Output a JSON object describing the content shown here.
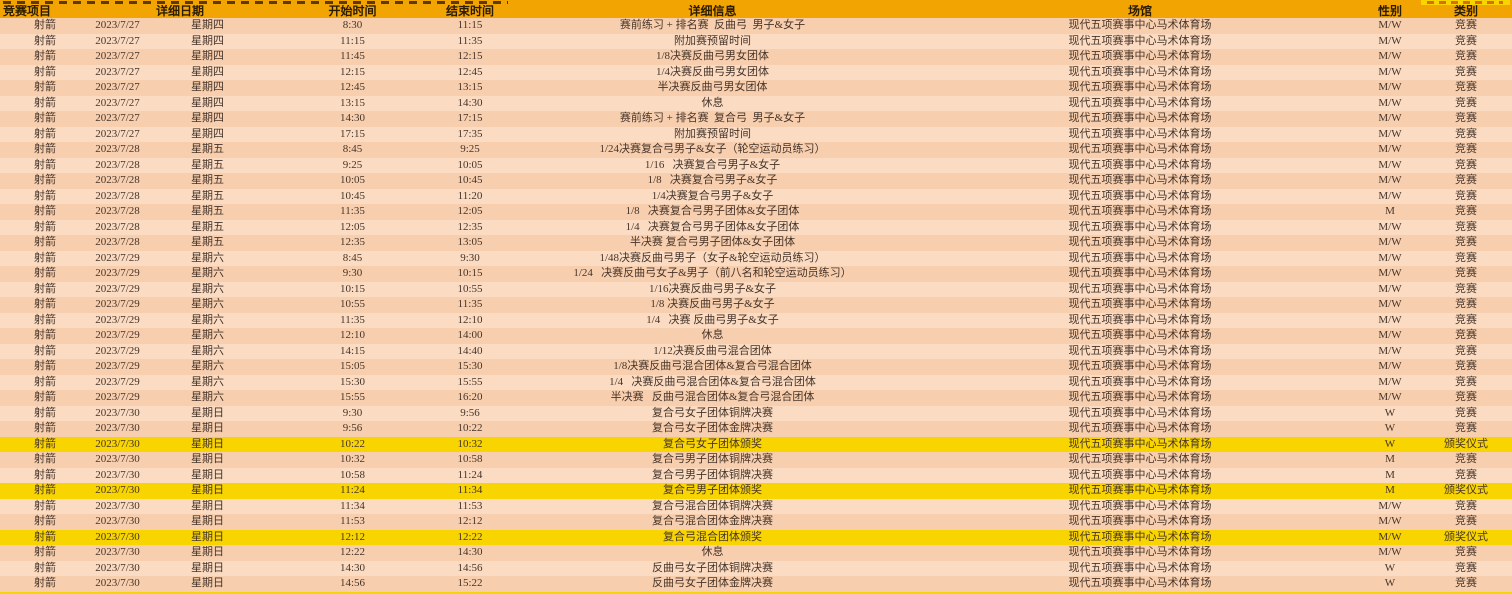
{
  "colors": {
    "header_bg": "#f2a403",
    "highlight": "#f8d400",
    "row_even": "#f8cfae",
    "row_odd": "#fbdcc2",
    "text_dark": "#46342a"
  },
  "table": {
    "columns": {
      "event": "竞赛项目",
      "date_group": "详细日期",
      "start": "开始时间",
      "end": "结束时间",
      "info": "详细信息",
      "venue": "场馆",
      "gender": "性别",
      "category": "类别"
    },
    "rows": [
      {
        "event": "射箭",
        "date": "2023/7/27",
        "day": "星期四",
        "start": "8:30",
        "end": "11:15",
        "info": "赛前练习 + 排名赛  反曲弓  男子&女子",
        "venue": "现代五项赛事中心马术体育场",
        "gender": "M/W",
        "category": "竞赛",
        "highlight": false
      },
      {
        "event": "射箭",
        "date": "2023/7/27",
        "day": "星期四",
        "start": "11:15",
        "end": "11:35",
        "info": "附加赛预留时间",
        "venue": "现代五项赛事中心马术体育场",
        "gender": "M/W",
        "category": "竞赛",
        "highlight": false
      },
      {
        "event": "射箭",
        "date": "2023/7/27",
        "day": "星期四",
        "start": "11:45",
        "end": "12:15",
        "info": "1/8决赛反曲弓男女团体",
        "venue": "现代五项赛事中心马术体育场",
        "gender": "M/W",
        "category": "竞赛",
        "highlight": false
      },
      {
        "event": "射箭",
        "date": "2023/7/27",
        "day": "星期四",
        "start": "12:15",
        "end": "12:45",
        "info": "1/4决赛反曲弓男女团体",
        "venue": "现代五项赛事中心马术体育场",
        "gender": "M/W",
        "category": "竞赛",
        "highlight": false
      },
      {
        "event": "射箭",
        "date": "2023/7/27",
        "day": "星期四",
        "start": "12:45",
        "end": "13:15",
        "info": "半决赛反曲弓男女团体",
        "venue": "现代五项赛事中心马术体育场",
        "gender": "M/W",
        "category": "竞赛",
        "highlight": false
      },
      {
        "event": "射箭",
        "date": "2023/7/27",
        "day": "星期四",
        "start": "13:15",
        "end": "14:30",
        "info": "休息",
        "venue": "现代五项赛事中心马术体育场",
        "gender": "M/W",
        "category": "竞赛",
        "highlight": false
      },
      {
        "event": "射箭",
        "date": "2023/7/27",
        "day": "星期四",
        "start": "14:30",
        "end": "17:15",
        "info": "赛前练习 + 排名赛  复合弓  男子&女子",
        "venue": "现代五项赛事中心马术体育场",
        "gender": "M/W",
        "category": "竞赛",
        "highlight": false
      },
      {
        "event": "射箭",
        "date": "2023/7/27",
        "day": "星期四",
        "start": "17:15",
        "end": "17:35",
        "info": "附加赛预留时间",
        "venue": "现代五项赛事中心马术体育场",
        "gender": "M/W",
        "category": "竞赛",
        "highlight": false
      },
      {
        "event": "射箭",
        "date": "2023/7/28",
        "day": "星期五",
        "start": "8:45",
        "end": "9:25",
        "info": "1/24决赛复合弓男子&女子（轮空运动员练习）",
        "venue": "现代五项赛事中心马术体育场",
        "gender": "M/W",
        "category": "竞赛",
        "highlight": false
      },
      {
        "event": "射箭",
        "date": "2023/7/28",
        "day": "星期五",
        "start": "9:25",
        "end": "10:05",
        "info": "1/16   决赛复合弓男子&女子",
        "venue": "现代五项赛事中心马术体育场",
        "gender": "M/W",
        "category": "竞赛",
        "highlight": false
      },
      {
        "event": "射箭",
        "date": "2023/7/28",
        "day": "星期五",
        "start": "10:05",
        "end": "10:45",
        "info": "1/8   决赛复合弓男子&女子",
        "venue": "现代五项赛事中心马术体育场",
        "gender": "M/W",
        "category": "竞赛",
        "highlight": false
      },
      {
        "event": "射箭",
        "date": "2023/7/28",
        "day": "星期五",
        "start": "10:45",
        "end": "11:20",
        "info": "1/4决赛复合弓男子&女子",
        "venue": "现代五项赛事中心马术体育场",
        "gender": "M/W",
        "category": "竞赛",
        "highlight": false
      },
      {
        "event": "射箭",
        "date": "2023/7/28",
        "day": "星期五",
        "start": "11:35",
        "end": "12:05",
        "info": "1/8   决赛复合弓男子团体&女子团体",
        "venue": "现代五项赛事中心马术体育场",
        "gender": "M",
        "category": "竞赛",
        "highlight": false
      },
      {
        "event": "射箭",
        "date": "2023/7/28",
        "day": "星期五",
        "start": "12:05",
        "end": "12:35",
        "info": "1/4   决赛复合弓男子团体&女子团体",
        "venue": "现代五项赛事中心马术体育场",
        "gender": "M/W",
        "category": "竞赛",
        "highlight": false
      },
      {
        "event": "射箭",
        "date": "2023/7/28",
        "day": "星期五",
        "start": "12:35",
        "end": "13:05",
        "info": "半决赛 复合弓男子团体&女子团体",
        "venue": "现代五项赛事中心马术体育场",
        "gender": "M/W",
        "category": "竞赛",
        "highlight": false
      },
      {
        "event": "射箭",
        "date": "2023/7/29",
        "day": "星期六",
        "start": "8:45",
        "end": "9:30",
        "info": "1/48决赛反曲弓男子（女子&轮空运动员练习）",
        "venue": "现代五项赛事中心马术体育场",
        "gender": "M/W",
        "category": "竞赛",
        "highlight": false
      },
      {
        "event": "射箭",
        "date": "2023/7/29",
        "day": "星期六",
        "start": "9:30",
        "end": "10:15",
        "info": "1/24   决赛反曲弓女子&男子（前八名和轮空运动员练习）",
        "venue": "现代五项赛事中心马术体育场",
        "gender": "M/W",
        "category": "竞赛",
        "highlight": false
      },
      {
        "event": "射箭",
        "date": "2023/7/29",
        "day": "星期六",
        "start": "10:15",
        "end": "10:55",
        "info": "1/16决赛反曲弓男子&女子",
        "venue": "现代五项赛事中心马术体育场",
        "gender": "M/W",
        "category": "竞赛",
        "highlight": false
      },
      {
        "event": "射箭",
        "date": "2023/7/29",
        "day": "星期六",
        "start": "10:55",
        "end": "11:35",
        "info": "1/8 决赛反曲弓男子&女子",
        "venue": "现代五项赛事中心马术体育场",
        "gender": "M/W",
        "category": "竞赛",
        "highlight": false
      },
      {
        "event": "射箭",
        "date": "2023/7/29",
        "day": "星期六",
        "start": "11:35",
        "end": "12:10",
        "info": "1/4   决赛 反曲弓男子&女子",
        "venue": "现代五项赛事中心马术体育场",
        "gender": "M/W",
        "category": "竞赛",
        "highlight": false
      },
      {
        "event": "射箭",
        "date": "2023/7/29",
        "day": "星期六",
        "start": "12:10",
        "end": "14:00",
        "info": "休息",
        "venue": "现代五项赛事中心马术体育场",
        "gender": "M/W",
        "category": "竞赛",
        "highlight": false
      },
      {
        "event": "射箭",
        "date": "2023/7/29",
        "day": "星期六",
        "start": "14:15",
        "end": "14:40",
        "info": "1/12决赛反曲弓混合团体",
        "venue": "现代五项赛事中心马术体育场",
        "gender": "M/W",
        "category": "竞赛",
        "highlight": false
      },
      {
        "event": "射箭",
        "date": "2023/7/29",
        "day": "星期六",
        "start": "15:05",
        "end": "15:30",
        "info": "1/8决赛反曲弓混合团体&复合弓混合团体",
        "venue": "现代五项赛事中心马术体育场",
        "gender": "M/W",
        "category": "竞赛",
        "highlight": false
      },
      {
        "event": "射箭",
        "date": "2023/7/29",
        "day": "星期六",
        "start": "15:30",
        "end": "15:55",
        "info": "1/4   决赛反曲弓混合团体&复合弓混合团体",
        "venue": "现代五项赛事中心马术体育场",
        "gender": "M/W",
        "category": "竞赛",
        "highlight": false
      },
      {
        "event": "射箭",
        "date": "2023/7/29",
        "day": "星期六",
        "start": "15:55",
        "end": "16:20",
        "info": "半决赛   反曲弓混合团体&复合弓混合团体",
        "venue": "现代五项赛事中心马术体育场",
        "gender": "M/W",
        "category": "竞赛",
        "highlight": false
      },
      {
        "event": "射箭",
        "date": "2023/7/30",
        "day": "星期日",
        "start": "9:30",
        "end": "9:56",
        "info": "复合弓女子团体铜牌决赛",
        "venue": "现代五项赛事中心马术体育场",
        "gender": "W",
        "category": "竞赛",
        "highlight": false
      },
      {
        "event": "射箭",
        "date": "2023/7/30",
        "day": "星期日",
        "start": "9:56",
        "end": "10:22",
        "info": "复合弓女子团体金牌决赛",
        "venue": "现代五项赛事中心马术体育场",
        "gender": "W",
        "category": "竞赛",
        "highlight": false
      },
      {
        "event": "射箭",
        "date": "2023/7/30",
        "day": "星期日",
        "start": "10:22",
        "end": "10:32",
        "info": "复合弓女子团体颁奖",
        "venue": "现代五项赛事中心马术体育场",
        "gender": "W",
        "category": "颁奖仪式",
        "highlight": true
      },
      {
        "event": "射箭",
        "date": "2023/7/30",
        "day": "星期日",
        "start": "10:32",
        "end": "10:58",
        "info": "复合弓男子团体铜牌决赛",
        "venue": "现代五项赛事中心马术体育场",
        "gender": "M",
        "category": "竞赛",
        "highlight": false
      },
      {
        "event": "射箭",
        "date": "2023/7/30",
        "day": "星期日",
        "start": "10:58",
        "end": "11:24",
        "info": "复合弓男子团体铜牌决赛",
        "venue": "现代五项赛事中心马术体育场",
        "gender": "M",
        "category": "竞赛",
        "highlight": false
      },
      {
        "event": "射箭",
        "date": "2023/7/30",
        "day": "星期日",
        "start": "11:24",
        "end": "11:34",
        "info": "复合弓男子团体颁奖",
        "venue": "现代五项赛事中心马术体育场",
        "gender": "M",
        "category": "颁奖仪式",
        "highlight": true
      },
      {
        "event": "射箭",
        "date": "2023/7/30",
        "day": "星期日",
        "start": "11:34",
        "end": "11:53",
        "info": "复合弓混合团体铜牌决赛",
        "venue": "现代五项赛事中心马术体育场",
        "gender": "M/W",
        "category": "竞赛",
        "highlight": false
      },
      {
        "event": "射箭",
        "date": "2023/7/30",
        "day": "星期日",
        "start": "11:53",
        "end": "12:12",
        "info": "复合弓混合团体金牌决赛",
        "venue": "现代五项赛事中心马术体育场",
        "gender": "M/W",
        "category": "竞赛",
        "highlight": false
      },
      {
        "event": "射箭",
        "date": "2023/7/30",
        "day": "星期日",
        "start": "12:12",
        "end": "12:22",
        "info": "复合弓混合团体颁奖",
        "venue": "现代五项赛事中心马术体育场",
        "gender": "M/W",
        "category": "颁奖仪式",
        "highlight": true
      },
      {
        "event": "射箭",
        "date": "2023/7/30",
        "day": "星期日",
        "start": "12:22",
        "end": "14:30",
        "info": "休息",
        "venue": "现代五项赛事中心马术体育场",
        "gender": "M/W",
        "category": "竞赛",
        "highlight": false
      },
      {
        "event": "射箭",
        "date": "2023/7/30",
        "day": "星期日",
        "start": "14:30",
        "end": "14:56",
        "info": "反曲弓女子团体铜牌决赛",
        "venue": "现代五项赛事中心马术体育场",
        "gender": "W",
        "category": "竞赛",
        "highlight": false
      },
      {
        "event": "射箭",
        "date": "2023/7/30",
        "day": "星期日",
        "start": "14:56",
        "end": "15:22",
        "info": "反曲弓女子团体金牌决赛",
        "venue": "现代五项赛事中心马术体育场",
        "gender": "W",
        "category": "竞赛",
        "highlight": false
      },
      {
        "event": "",
        "date": "",
        "day": "",
        "start": "",
        "end": "",
        "info": "",
        "venue": "",
        "gender": "",
        "category": "",
        "highlight": true
      }
    ]
  }
}
